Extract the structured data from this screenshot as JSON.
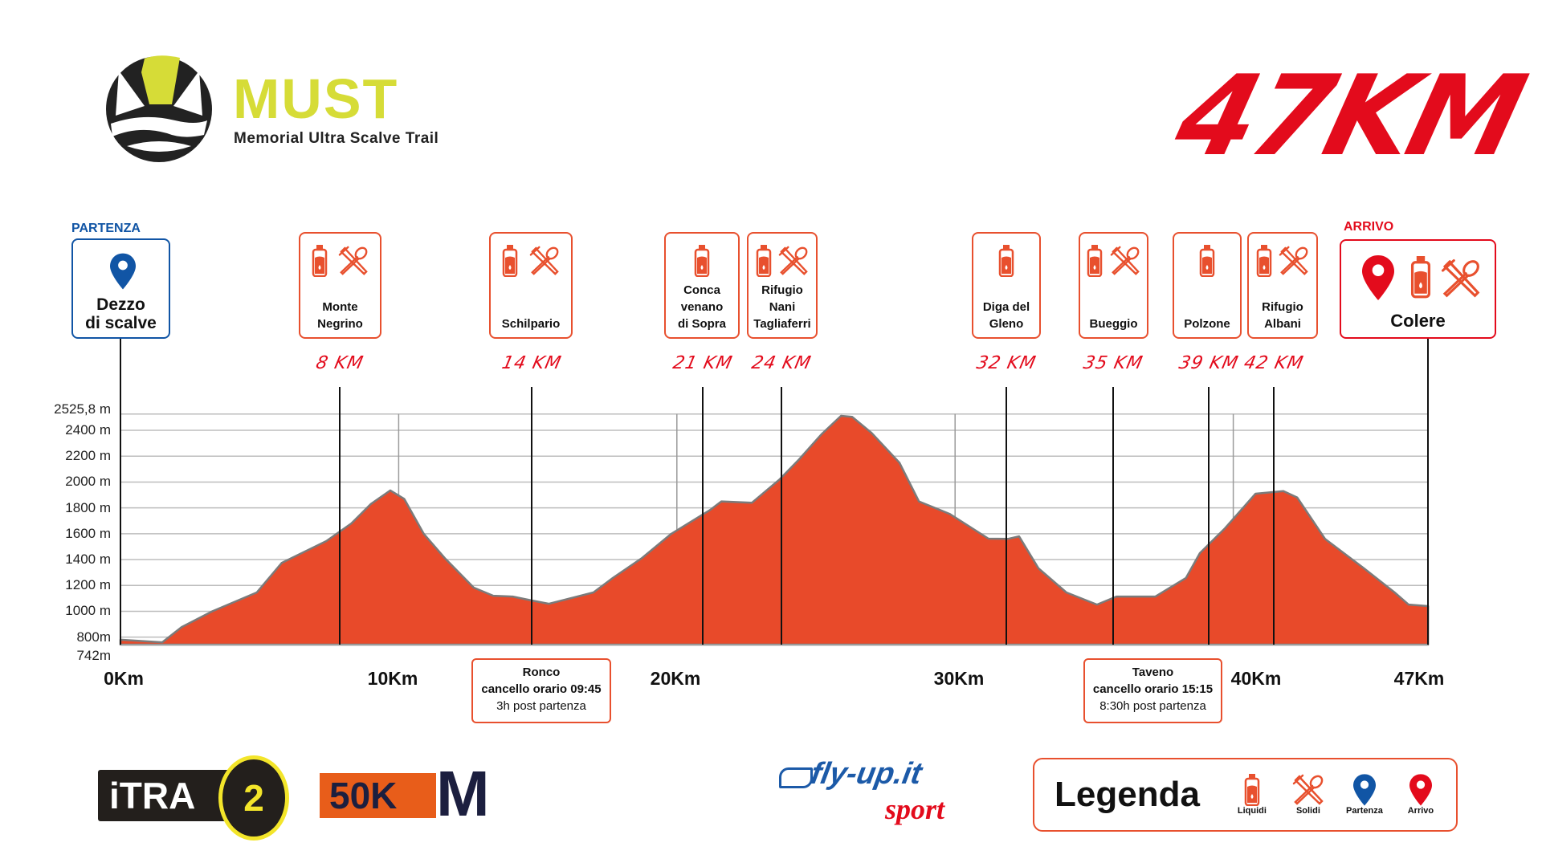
{
  "header": {
    "logo_title": "MUST",
    "logo_subtitle": "Memorial Ultra Scalve Trail",
    "distance_title": "47KM"
  },
  "colors": {
    "profile_fill": "#e84a2a",
    "profile_stroke": "#7b7b7b",
    "station_border": "#e8502e",
    "km_label": "#e30b1c",
    "start_blue": "#1155a5",
    "finish_red": "#e30b1c",
    "logo_yellow": "#d6dc37"
  },
  "start": {
    "caption": "PARTENZA",
    "name": "Dezzo\ndi scalve",
    "icon": "map-pin-blue"
  },
  "finish": {
    "caption": "ARRIVO",
    "name": "Colere",
    "icons": [
      "map-pin-red",
      "bottle-icon",
      "cutlery-icon"
    ]
  },
  "stations": [
    {
      "name": "Monte\nNegrino",
      "km": "8 KM",
      "liquids": true,
      "solids": true
    },
    {
      "name": "Schilpario",
      "km": "14 KM",
      "liquids": true,
      "solids": true
    },
    {
      "name": "Conca\nvenano\ndi Sopra",
      "km": "21 KM",
      "liquids": true,
      "solids": false
    },
    {
      "name": "Rifugio\nNani\nTagliaferri",
      "km": "24 KM",
      "liquids": true,
      "solids": true
    },
    {
      "name": "Diga del\nGleno",
      "km": "32 KM",
      "liquids": true,
      "solids": false
    },
    {
      "name": "Bueggio",
      "km": "35 KM",
      "liquids": true,
      "solids": true
    },
    {
      "name": "Polzone",
      "km": "39 KM",
      "liquids": true,
      "solids": false
    },
    {
      "name": "Rifugio\nAlbani",
      "km": "42 KM",
      "liquids": true,
      "solids": true
    }
  ],
  "cutoffs": [
    {
      "place": "Ronco",
      "time": "cancello orario 09:45",
      "note": "3h post partenza"
    },
    {
      "place": "Taveno",
      "time": "cancello orario 15:15",
      "note": "8:30h post partenza"
    }
  ],
  "chart_data": {
    "type": "area",
    "title": "",
    "xlabel": "",
    "ylabel": "",
    "xlim": [
      0,
      47
    ],
    "ylim": [
      742,
      2525.8
    ],
    "grid": true,
    "xticks": [
      0,
      10,
      20,
      30,
      40,
      47
    ],
    "xtick_labels": [
      "0Km",
      "10Km",
      "20Km",
      "30Km",
      "40Km",
      "47Km"
    ],
    "yticks": [
      742,
      800,
      1000,
      1200,
      1400,
      1600,
      1800,
      2000,
      2200,
      2400,
      2525.8
    ],
    "ytick_labels": [
      "742m",
      "800m",
      "1000 m",
      "1200 m",
      "1400 m",
      "1600 m",
      "1800 m",
      "2000 m",
      "2200 m",
      "2400 m",
      "2525,8 m"
    ],
    "x": [
      0,
      1.5,
      2.2,
      3.3,
      4.9,
      5.8,
      7.4,
      8.3,
      9.0,
      9.7,
      10.2,
      10.9,
      11.65,
      12.7,
      13.4,
      14.1,
      14.8,
      15.4,
      17.0,
      17.7,
      18.75,
      19.8,
      21.2,
      21.6,
      22.7,
      23.7,
      24.4,
      25.2,
      25.9,
      26.3,
      27.0,
      28.0,
      28.7,
      29.8,
      31.2,
      31.9,
      32.3,
      33.0,
      34.0,
      35.1,
      35.8,
      37.2,
      38.3,
      38.8,
      39.7,
      40.8,
      41.8,
      42.3,
      43.3,
      44.7,
      45.8,
      46.3,
      47.0
    ],
    "y": [
      780,
      760,
      878,
      1000,
      1146,
      1375,
      1543,
      1680,
      1830,
      1935,
      1870,
      1600,
      1413,
      1183,
      1120,
      1114,
      1083,
      1058,
      1146,
      1258,
      1413,
      1600,
      1785,
      1850,
      1840,
      2022,
      2177,
      2370,
      2512,
      2505,
      2380,
      2150,
      1850,
      1754,
      1562,
      1560,
      1580,
      1332,
      1146,
      1052,
      1114,
      1114,
      1258,
      1450,
      1642,
      1910,
      1930,
      1880,
      1560,
      1332,
      1146,
      1052,
      1040
    ]
  },
  "legend": {
    "title": "Legenda",
    "items": [
      {
        "label": "Liquidi",
        "icon": "bottle-icon"
      },
      {
        "label": "Solidi",
        "icon": "cutlery-icon"
      },
      {
        "label": "Partenza",
        "icon": "map-pin-blue"
      },
      {
        "label": "Arrivo",
        "icon": "map-pin-red"
      }
    ]
  },
  "sponsors": {
    "itra_text": "iTRA",
    "itra_points": "2",
    "utmb_category": "50K",
    "utmb_letter": "M",
    "flyup_text": "fly-up.it",
    "flyup_sub": "sport"
  }
}
